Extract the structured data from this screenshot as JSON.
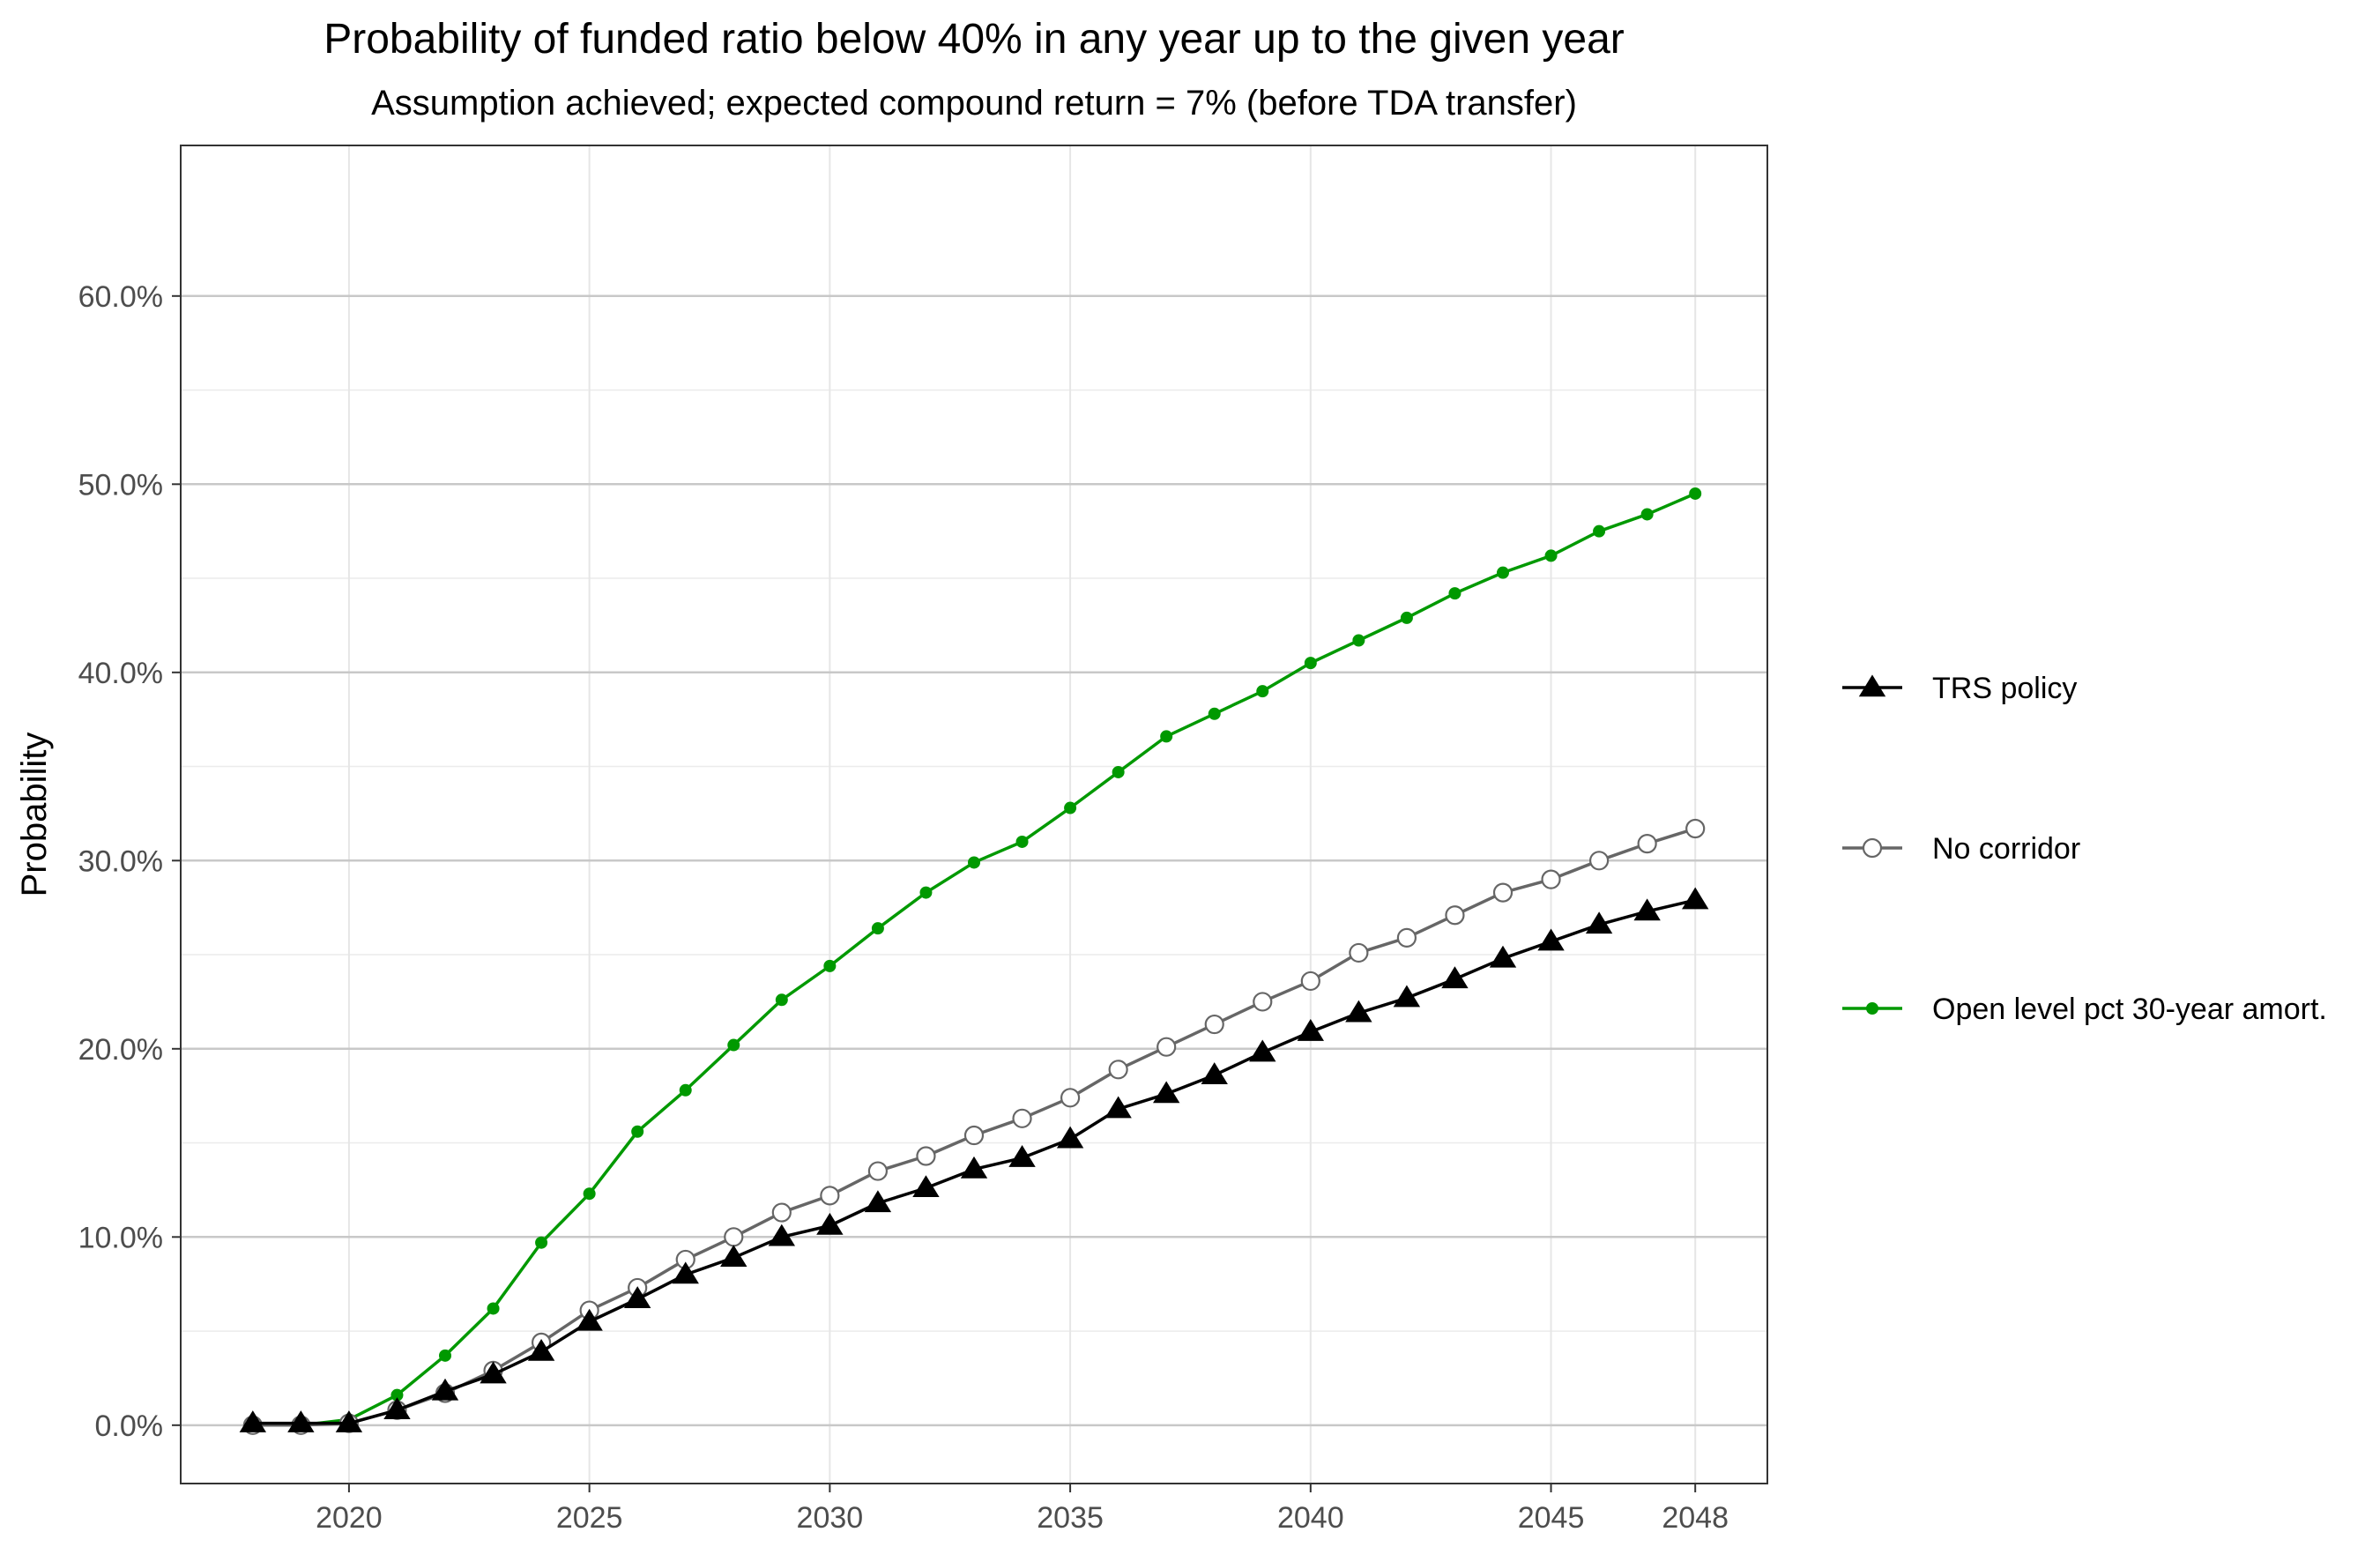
{
  "chart_data": {
    "type": "line",
    "title": "Probability of funded ratio below 40% in any year up to the given year",
    "subtitle": "Assumption achieved; expected compound return = 7% (before TDA transfer)",
    "xlabel": "",
    "ylabel": "Probability",
    "xlim": [
      2016.5,
      2049.5
    ],
    "ylim": [
      -3.1,
      68.0
    ],
    "x_ticks": [
      2020,
      2025,
      2030,
      2035,
      2040,
      2045,
      2048
    ],
    "x_tick_labels": [
      "2020",
      "2025",
      "2030",
      "2035",
      "2040",
      "2045",
      "2048"
    ],
    "y_ticks": [
      0,
      10,
      20,
      30,
      40,
      50,
      60
    ],
    "y_tick_labels": [
      "0.0%",
      "10.0%",
      "20.0%",
      "30.0%",
      "40.0%",
      "50.0%",
      "60.0%"
    ],
    "grid": true,
    "legend_position": "right",
    "x": [
      2018,
      2019,
      2020,
      2021,
      2022,
      2023,
      2024,
      2025,
      2026,
      2027,
      2028,
      2029,
      2030,
      2031,
      2032,
      2033,
      2034,
      2035,
      2036,
      2037,
      2038,
      2039,
      2040,
      2041,
      2042,
      2043,
      2044,
      2045,
      2046,
      2047,
      2048
    ],
    "series": [
      {
        "name": "TRS policy",
        "color": "#000000",
        "marker": "filled-triangle",
        "values": [
          0.1,
          0.1,
          0.1,
          0.8,
          1.8,
          2.7,
          3.9,
          5.5,
          6.7,
          8.0,
          8.9,
          10.0,
          10.6,
          11.8,
          12.6,
          13.6,
          14.2,
          15.2,
          16.8,
          17.6,
          18.6,
          19.8,
          20.9,
          21.9,
          22.7,
          23.7,
          24.8,
          25.7,
          26.6,
          27.3,
          27.9
        ]
      },
      {
        "name": "No corridor",
        "color": "#666666",
        "marker": "open-circle",
        "values": [
          0.0,
          0.0,
          0.1,
          0.8,
          1.7,
          2.9,
          4.4,
          6.1,
          7.3,
          8.8,
          10.0,
          11.3,
          12.2,
          13.5,
          14.3,
          15.4,
          16.3,
          17.4,
          18.9,
          20.1,
          21.3,
          22.5,
          23.6,
          25.1,
          25.9,
          27.1,
          28.3,
          29.0,
          30.0,
          30.9,
          31.7
        ]
      },
      {
        "name": "Open level pct 30-year amort.",
        "color": "#009900",
        "marker": "small-dot",
        "values": [
          0.0,
          0.0,
          0.3,
          1.6,
          3.7,
          6.2,
          9.7,
          12.3,
          15.6,
          17.8,
          20.2,
          22.6,
          24.4,
          26.4,
          28.3,
          29.9,
          31.0,
          32.8,
          34.7,
          36.6,
          37.8,
          39.0,
          40.5,
          41.7,
          42.9,
          44.2,
          45.3,
          46.2,
          47.5,
          48.4,
          49.5
        ]
      }
    ]
  }
}
